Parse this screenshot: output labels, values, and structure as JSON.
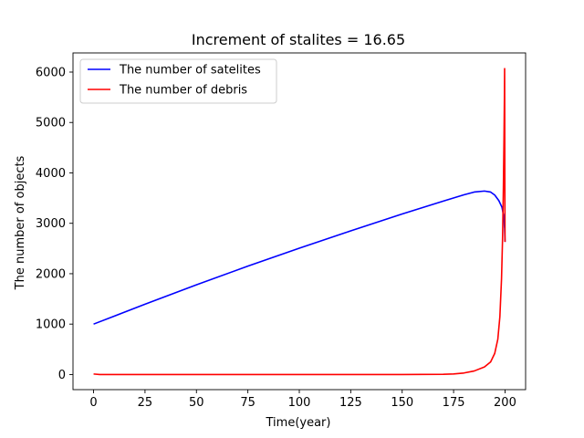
{
  "chart_data": {
    "type": "line",
    "title": "Increment of stalites = 16.65",
    "xlabel": "Time(year)",
    "ylabel": "The number of objects",
    "xlim": [
      -10,
      210
    ],
    "ylim": [
      -300,
      6380
    ],
    "xticks": [
      0,
      25,
      50,
      75,
      100,
      125,
      150,
      175,
      200
    ],
    "yticks": [
      0,
      1000,
      2000,
      3000,
      4000,
      5000,
      6000
    ],
    "grid": false,
    "legend_position": "upper-left",
    "series": [
      {
        "name": "The number of satelites",
        "color": "#0000ff",
        "points": [
          [
            0,
            1000
          ],
          [
            25,
            1395
          ],
          [
            50,
            1780
          ],
          [
            75,
            2150
          ],
          [
            100,
            2505
          ],
          [
            125,
            2850
          ],
          [
            150,
            3185
          ],
          [
            170,
            3440
          ],
          [
            180,
            3565
          ],
          [
            185,
            3620
          ],
          [
            190,
            3640
          ],
          [
            193,
            3620
          ],
          [
            195,
            3560
          ],
          [
            197,
            3450
          ],
          [
            198.5,
            3320
          ],
          [
            199.3,
            3150
          ],
          [
            199.8,
            2900
          ],
          [
            200,
            2630
          ]
        ]
      },
      {
        "name": "The number of debris",
        "color": "#ff0000",
        "points": [
          [
            0,
            10
          ],
          [
            3,
            0
          ],
          [
            25,
            0
          ],
          [
            50,
            0
          ],
          [
            75,
            0
          ],
          [
            100,
            0
          ],
          [
            125,
            0
          ],
          [
            150,
            0
          ],
          [
            170,
            5
          ],
          [
            175,
            12
          ],
          [
            180,
            30
          ],
          [
            185,
            70
          ],
          [
            190,
            150
          ],
          [
            193,
            250
          ],
          [
            195,
            420
          ],
          [
            196.5,
            700
          ],
          [
            197.5,
            1150
          ],
          [
            198.3,
            1900
          ],
          [
            198.8,
            2700
          ],
          [
            199.2,
            3700
          ],
          [
            199.5,
            4700
          ],
          [
            199.7,
            5500
          ],
          [
            199.8,
            6070
          ],
          [
            199.85,
            5200
          ],
          [
            199.9,
            4000
          ],
          [
            200,
            2630
          ]
        ]
      }
    ]
  }
}
